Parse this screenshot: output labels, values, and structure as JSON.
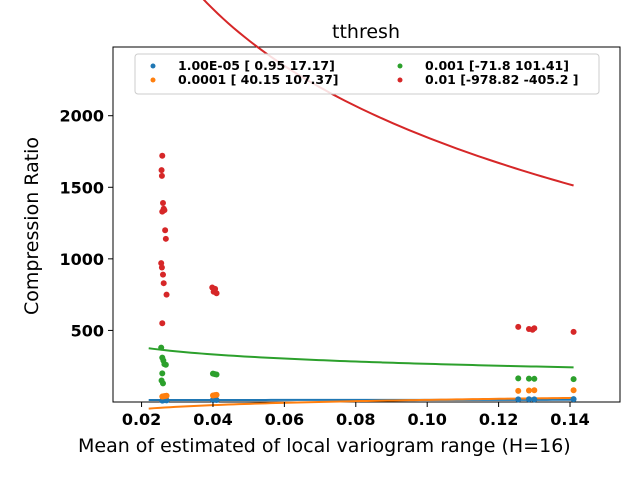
{
  "chart_data": {
    "type": "scatter",
    "title": "tthresh",
    "xlabel": "Mean of estimated of local variogram range (H=16)",
    "ylabel": "Compression Ratio",
    "xlim": [
      0.012,
      0.154
    ],
    "ylim": [
      0,
      2480
    ],
    "xticks": [
      0.02,
      0.04,
      0.06,
      0.08,
      0.1,
      0.12,
      0.14
    ],
    "xtick_labels": [
      "0.02",
      "0.04",
      "0.06",
      "0.08",
      "0.10",
      "0.12",
      "0.14"
    ],
    "yticks": [
      500,
      1000,
      1500,
      2000
    ],
    "ytick_labels": [
      "500",
      "1000",
      "1500",
      "2000"
    ],
    "grid": false,
    "legend": {
      "placement": "top",
      "columns": 2
    },
    "series": [
      {
        "name": "1.00E-05 [ 0.95 17.17]",
        "color": "#1f77b4",
        "fit": {
          "a": 0.95,
          "b": 17.17
        },
        "points": [
          [
            0.0258,
            10
          ],
          [
            0.0262,
            12
          ],
          [
            0.0266,
            14
          ],
          [
            0.027,
            11
          ],
          [
            0.04,
            15
          ],
          [
            0.0405,
            16
          ],
          [
            0.041,
            14
          ],
          [
            0.1255,
            18
          ],
          [
            0.1285,
            19
          ],
          [
            0.13,
            18
          ],
          [
            0.141,
            20
          ]
        ]
      },
      {
        "name": "0.0001 [ 40.15 107.37]",
        "color": "#ff7f0e",
        "fit": {
          "a": 40.15,
          "b": 107.37
        },
        "points": [
          [
            0.0258,
            38
          ],
          [
            0.0262,
            40
          ],
          [
            0.0266,
            42
          ],
          [
            0.027,
            44
          ],
          [
            0.04,
            45
          ],
          [
            0.0405,
            48
          ],
          [
            0.041,
            50
          ],
          [
            0.1255,
            78
          ],
          [
            0.1285,
            80
          ],
          [
            0.13,
            82
          ],
          [
            0.141,
            82
          ]
        ]
      },
      {
        "name": "0.001 [-71.8  101.41]",
        "color": "#2ca02c",
        "fit": {
          "a": -71.8,
          "b": 101.41
        },
        "points": [
          [
            0.0255,
            380
          ],
          [
            0.0258,
            310
          ],
          [
            0.0261,
            290
          ],
          [
            0.0264,
            265
          ],
          [
            0.0268,
            260
          ],
          [
            0.0258,
            200
          ],
          [
            0.0256,
            150
          ],
          [
            0.026,
            130
          ],
          [
            0.04,
            198
          ],
          [
            0.0405,
            195
          ],
          [
            0.041,
            192
          ],
          [
            0.1255,
            165
          ],
          [
            0.1285,
            163
          ],
          [
            0.13,
            162
          ],
          [
            0.141,
            160
          ]
        ]
      },
      {
        "name": "0.01 [-978.82 -405.2 ]",
        "color": "#d62728",
        "fit": {
          "a": -978.82,
          "b": -405.2
        },
        "points": [
          [
            0.0258,
            1720
          ],
          [
            0.0256,
            1620
          ],
          [
            0.0257,
            1580
          ],
          [
            0.026,
            1390
          ],
          [
            0.0262,
            1350
          ],
          [
            0.0258,
            1330
          ],
          [
            0.0264,
            1340
          ],
          [
            0.0266,
            1200
          ],
          [
            0.0268,
            1140
          ],
          [
            0.0255,
            970
          ],
          [
            0.0257,
            940
          ],
          [
            0.026,
            890
          ],
          [
            0.0262,
            830
          ],
          [
            0.027,
            750
          ],
          [
            0.0258,
            550
          ],
          [
            0.0398,
            800
          ],
          [
            0.0402,
            770
          ],
          [
            0.0406,
            790
          ],
          [
            0.041,
            760
          ],
          [
            0.1255,
            525
          ],
          [
            0.1285,
            510
          ],
          [
            0.1295,
            505
          ],
          [
            0.13,
            515
          ],
          [
            0.141,
            490
          ]
        ]
      }
    ]
  }
}
